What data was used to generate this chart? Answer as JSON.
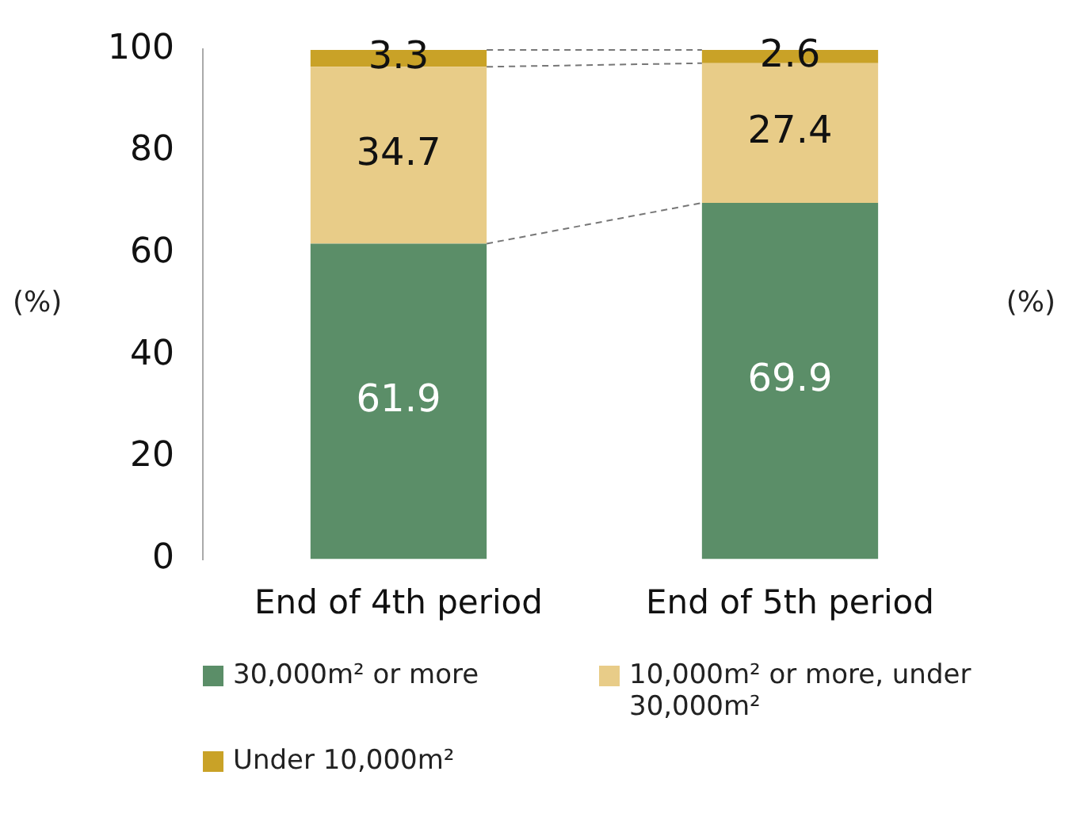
{
  "chart_data": {
    "type": "bar",
    "stacked": true,
    "categories": [
      "End of 4th period",
      "End of 5th period"
    ],
    "series": [
      {
        "name": "30,000m² or more",
        "color": "#5b8e68",
        "values": [
          61.9,
          69.9
        ]
      },
      {
        "name": "10,000m² or more, under 30,000m²",
        "color": "#e8cc88",
        "values": [
          34.7,
          27.4
        ]
      },
      {
        "name": "Under 10,000m²",
        "color": "#c9a227",
        "values": [
          3.3,
          2.6
        ]
      }
    ],
    "ylabel": "(%)",
    "y2label": "(%)",
    "ylim": [
      0,
      100
    ],
    "yticks": [
      0,
      20,
      40,
      60,
      80,
      100
    ],
    "grid": false,
    "legend": "bottom",
    "data_labels": true
  }
}
